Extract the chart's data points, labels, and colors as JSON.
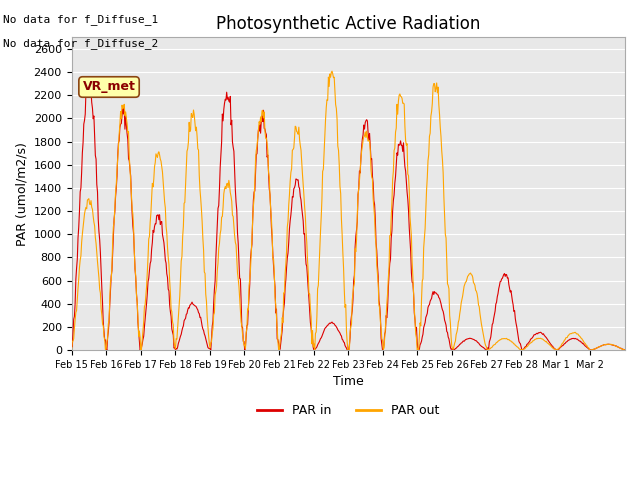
{
  "title": "Photosynthetic Active Radiation",
  "ylabel": "PAR (umol/m2/s)",
  "xlabel": "Time",
  "text_top_left_1": "No data for f_Diffuse_1",
  "text_top_left_2": "No data for f_Diffuse_2",
  "vr_met_label": "VR_met",
  "ylim": [
    0,
    2700
  ],
  "yticks": [
    0,
    200,
    400,
    600,
    800,
    1000,
    1200,
    1400,
    1600,
    1800,
    2000,
    2200,
    2400,
    2600
  ],
  "color_par_in": "#DD0000",
  "color_par_out": "#FFA500",
  "legend_par_in": "PAR in",
  "legend_par_out": "PAR out",
  "background_color": "#FFFFFF",
  "plot_bg_color": "#E8E8E8",
  "grid_color": "#FFFFFF",
  "x_labels": [
    "Feb 15",
    "Feb 16",
    "Feb 17",
    "Feb 18",
    "Feb 19",
    "Feb 20",
    "Feb 21",
    "Feb 22",
    "Feb 23",
    "Feb 24",
    "Feb 25",
    "Feb 26",
    "Feb 27",
    "Feb 28",
    "Mar 1",
    "Mar 2"
  ],
  "par_in_peaks": [
    2280,
    2040,
    1150,
    400,
    2200,
    2030,
    1450,
    235,
    1975,
    1810,
    500,
    100,
    650,
    150,
    100,
    50
  ],
  "par_out_peaks": [
    1300,
    2100,
    1680,
    2050,
    1440,
    2050,
    1900,
    2400,
    1900,
    2200,
    2280,
    660,
    100,
    100,
    150,
    50
  ]
}
